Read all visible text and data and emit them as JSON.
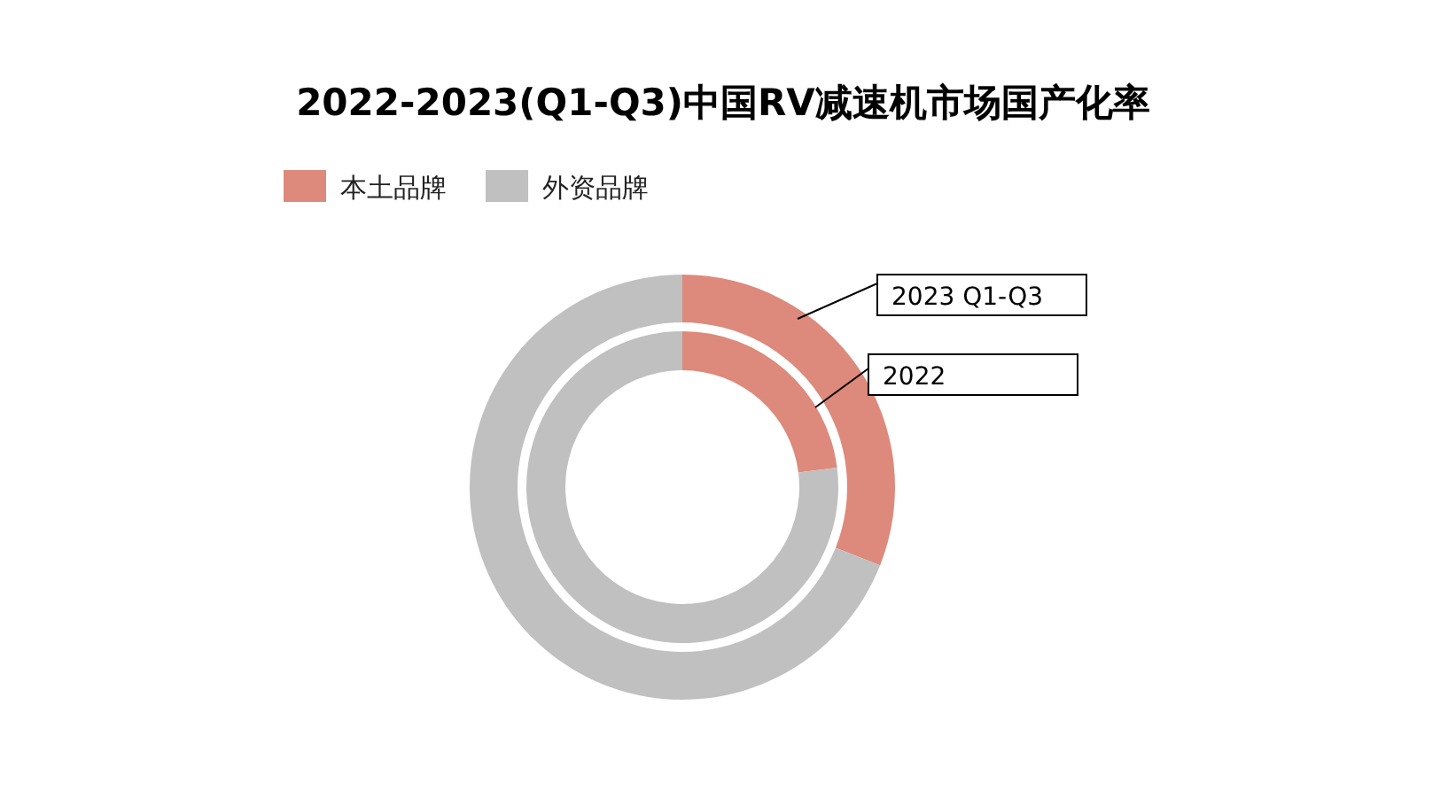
{
  "chart_data": {
    "type": "donut",
    "title": "2022-2023(Q1-Q3)中国RV减速机市场国产化率",
    "categories": [
      "本土品牌",
      "外资品牌"
    ],
    "colors": [
      "#dd897b",
      "#c0c0c0"
    ],
    "legend": "top left",
    "series": [
      {
        "name": "2022",
        "values": [
          23,
          77
        ]
      },
      {
        "name": "2023 Q1-Q3",
        "values": [
          31,
          69
        ]
      }
    ]
  }
}
